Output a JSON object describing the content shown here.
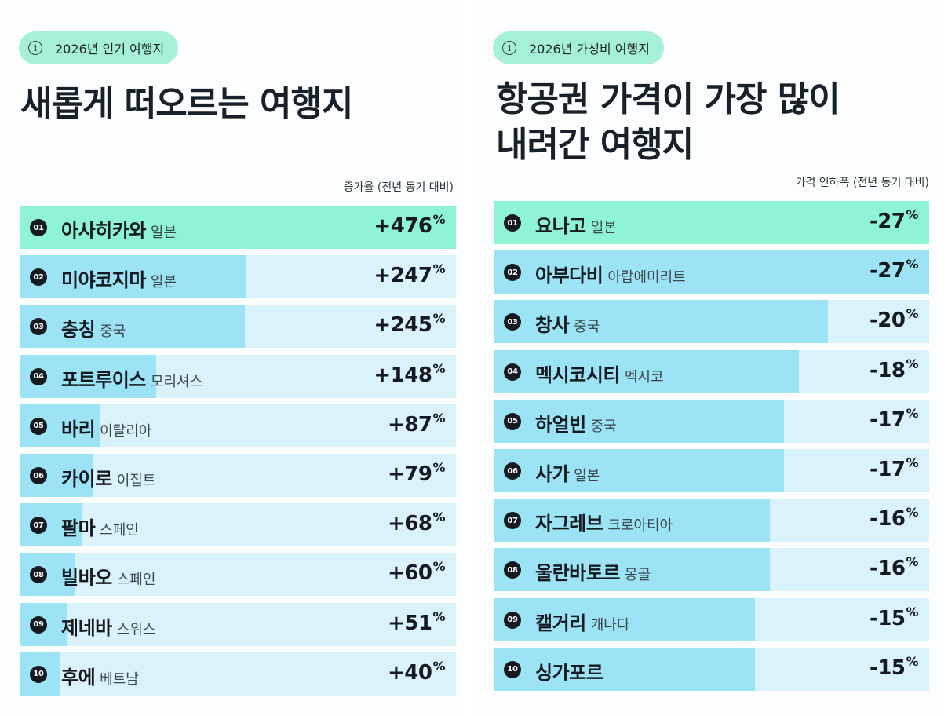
{
  "left": {
    "tag": "2026년 인기 여행지",
    "headline": [
      "새롭게 떠오르는 여행지"
    ],
    "caption": "증가율 (전년 동기 대비)",
    "info_icon": "info-circle-icon"
  },
  "right": {
    "tag": "2026년 가성비 여행지",
    "headline": [
      "항공권 가격이 가장 많이",
      "내려간 여행지"
    ],
    "caption": "가격 인하폭 (전년 동기 대비)",
    "info_icon": "info-circle-icon"
  },
  "colors": {
    "accent_mint": "#8ff3d5",
    "bar_fill": "#9be3f5",
    "bar_track": "#daf2fa",
    "pill_bg": "#a6f0d8"
  },
  "chart_data": [
    {
      "type": "bar",
      "orientation": "horizontal",
      "title": "새롭게 떠오르는 여행지",
      "value_label": "증가율 (전년 동기 대비)",
      "unit": "%",
      "ranks": [
        "01",
        "02",
        "03",
        "04",
        "05",
        "06",
        "07",
        "08",
        "09",
        "10"
      ],
      "categories": [
        "아사히카와",
        "미야코지마",
        "충칭",
        "포트루이스",
        "바리",
        "카이로",
        "팔마",
        "빌바오",
        "제네바",
        "후에"
      ],
      "countries": [
        "일본",
        "일본",
        "중국",
        "모리셔스",
        "이탈리아",
        "이집트",
        "스페인",
        "스페인",
        "스위스",
        "베트남"
      ],
      "values": [
        476,
        247,
        245,
        148,
        87,
        79,
        68,
        60,
        51,
        40
      ],
      "display": [
        "+476",
        "+247",
        "+245",
        "+148",
        "+87",
        "+79",
        "+68",
        "+60",
        "+51",
        "+40"
      ]
    },
    {
      "type": "bar",
      "orientation": "horizontal",
      "title": "항공권 가격이 가장 많이 내려간 여행지",
      "value_label": "가격 인하폭 (전년 동기 대비)",
      "unit": "%",
      "ranks": [
        "01",
        "02",
        "03",
        "04",
        "05",
        "06",
        "07",
        "08",
        "09",
        "10"
      ],
      "categories": [
        "요나고",
        "아부다비",
        "창사",
        "멕시코시티",
        "하얼빈",
        "사가",
        "자그레브",
        "울란바토르",
        "캘거리",
        "싱가포르"
      ],
      "countries": [
        "일본",
        "아랍에미리트",
        "중국",
        "멕시코",
        "중국",
        "일본",
        "크로아티아",
        "몽골",
        "캐나다",
        ""
      ],
      "values": [
        -27,
        -27,
        -20,
        -18,
        -17,
        -17,
        -16,
        -16,
        -15,
        -15
      ],
      "display": [
        "-27",
        "-27",
        "-20",
        "-18",
        "-17",
        "-17",
        "-16",
        "-16",
        "-15",
        "-15"
      ]
    }
  ]
}
